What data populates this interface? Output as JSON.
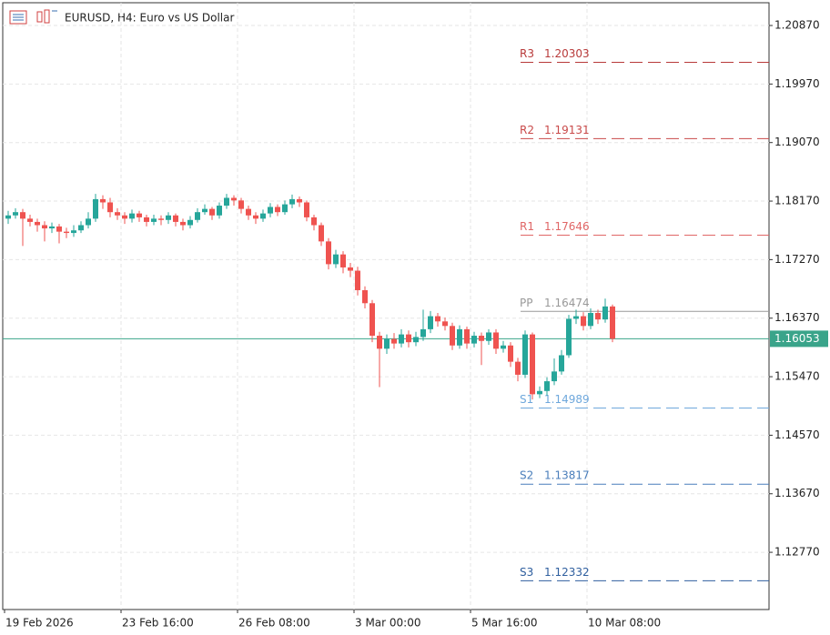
{
  "chart_data": {
    "type": "candlestick",
    "title": "EURUSD, H4:  Euro vs US Dollar",
    "categories": [
      "19 Feb 2026",
      null,
      null,
      null,
      null,
      null,
      null,
      null,
      null,
      null,
      null,
      null,
      null,
      null,
      null,
      null,
      "23 Feb 16:00",
      null,
      null,
      null,
      null,
      null,
      null,
      null,
      null,
      null,
      null,
      null,
      null,
      null,
      null,
      null,
      "26 Feb 08:00",
      null,
      null,
      null,
      null,
      null,
      null,
      null,
      null,
      null,
      null,
      null,
      null,
      null,
      null,
      null,
      "3 Mar 00:00",
      null,
      null,
      null,
      null,
      null,
      null,
      null,
      null,
      null,
      null,
      null,
      null,
      null,
      null,
      null,
      "5 Mar 16:00",
      null,
      null,
      null,
      null,
      null,
      null,
      null,
      null,
      null,
      null,
      null,
      null,
      null,
      null,
      null,
      "10 Mar 08:00",
      null,
      null,
      null
    ],
    "open": [
      1.179,
      1.1795,
      1.18,
      1.179,
      1.1785,
      1.178,
      1.1775,
      1.1778,
      1.177,
      1.1768,
      1.1772,
      1.178,
      1.179,
      1.182,
      1.1815,
      1.18,
      1.1795,
      1.179,
      1.1798,
      1.1792,
      1.1785,
      1.179,
      1.1788,
      1.1795,
      1.1785,
      1.178,
      1.1788,
      1.18,
      1.1805,
      1.1795,
      1.181,
      1.1822,
      1.1818,
      1.1805,
      1.1795,
      1.179,
      1.1798,
      1.1808,
      1.18,
      1.1812,
      1.182,
      1.1815,
      1.1792,
      1.178,
      1.1755,
      1.172,
      1.1735,
      1.1715,
      1.171,
      1.168,
      1.166,
      1.161,
      1.159,
      1.1605,
      1.1598,
      1.1612,
      1.16,
      1.1608,
      1.162,
      1.164,
      1.1632,
      1.1625,
      1.1595,
      1.162,
      1.1598,
      1.161,
      1.1602,
      1.1615,
      1.159,
      1.1595,
      1.157,
      1.155,
      1.1612,
      1.152,
      1.1525,
      1.154,
      1.1555,
      1.158,
      1.1636,
      1.164,
      1.1625,
      1.1645,
      1.1635,
      1.1655
    ],
    "high": [
      1.1802,
      1.1806,
      1.1805,
      1.1796,
      1.179,
      1.1786,
      1.1784,
      1.1782,
      1.1776,
      1.178,
      1.1786,
      1.18,
      1.1828,
      1.1826,
      1.1822,
      1.1806,
      1.18,
      1.1804,
      1.1802,
      1.1796,
      1.1796,
      1.1795,
      1.18,
      1.1798,
      1.179,
      1.1794,
      1.1806,
      1.1812,
      1.1808,
      1.1815,
      1.1828,
      1.1826,
      1.1822,
      1.181,
      1.18,
      1.1804,
      1.1814,
      1.1812,
      1.1818,
      1.1827,
      1.1824,
      1.1818,
      1.1796,
      1.1784,
      1.176,
      1.1742,
      1.174,
      1.1722,
      1.1716,
      1.1686,
      1.1665,
      1.1616,
      1.1612,
      1.1614,
      1.162,
      1.1618,
      1.1616,
      1.165,
      1.1648,
      1.1645,
      1.1638,
      1.163,
      1.1626,
      1.1624,
      1.1616,
      1.1615,
      1.162,
      1.162,
      1.1602,
      1.16,
      1.1576,
      1.1618,
      1.1615,
      1.1532,
      1.1546,
      1.1575,
      1.1588,
      1.1642,
      1.165,
      1.1646,
      1.1652,
      1.165,
      1.1667,
      1.1658
    ],
    "low": [
      1.1782,
      1.179,
      1.1748,
      1.1778,
      1.177,
      1.1755,
      1.1768,
      1.1752,
      1.176,
      1.1762,
      1.1768,
      1.1775,
      1.1785,
      1.1805,
      1.1792,
      1.1788,
      1.1782,
      1.1784,
      1.1785,
      1.1778,
      1.178,
      1.178,
      1.1782,
      1.1778,
      1.1772,
      1.1775,
      1.1784,
      1.1796,
      1.1788,
      1.179,
      1.1805,
      1.181,
      1.1798,
      1.1788,
      1.1782,
      1.1785,
      1.1792,
      1.1794,
      1.1796,
      1.1806,
      1.1808,
      1.1786,
      1.1772,
      1.1748,
      1.1712,
      1.1714,
      1.1706,
      1.17,
      1.1672,
      1.1652,
      1.16,
      1.1531,
      1.1582,
      1.159,
      1.1592,
      1.1592,
      1.1594,
      1.1602,
      1.1614,
      1.1624,
      1.1618,
      1.1588,
      1.159,
      1.159,
      1.1592,
      1.1565,
      1.1596,
      1.1582,
      1.1584,
      1.1562,
      1.154,
      1.1545,
      1.1512,
      1.1514,
      1.1518,
      1.1534,
      1.155,
      1.1576,
      1.1628,
      1.1618,
      1.162,
      1.1628,
      1.163,
      1.16
    ],
    "close": [
      1.1795,
      1.18,
      1.179,
      1.1785,
      1.178,
      1.1775,
      1.1778,
      1.177,
      1.1768,
      1.1772,
      1.178,
      1.179,
      1.182,
      1.1815,
      1.18,
      1.1795,
      1.179,
      1.1798,
      1.1792,
      1.1785,
      1.179,
      1.1788,
      1.1795,
      1.1785,
      1.178,
      1.1788,
      1.18,
      1.1805,
      1.1795,
      1.181,
      1.1822,
      1.1818,
      1.1805,
      1.1795,
      1.179,
      1.1798,
      1.1808,
      1.18,
      1.1812,
      1.182,
      1.1815,
      1.1792,
      1.178,
      1.1755,
      1.172,
      1.1735,
      1.1715,
      1.171,
      1.168,
      1.166,
      1.161,
      1.159,
      1.1605,
      1.1598,
      1.1612,
      1.16,
      1.1608,
      1.162,
      1.164,
      1.1632,
      1.1625,
      1.1595,
      1.162,
      1.1598,
      1.161,
      1.1602,
      1.1615,
      1.159,
      1.1595,
      1.157,
      1.155,
      1.1612,
      1.152,
      1.1525,
      1.154,
      1.1555,
      1.158,
      1.1636,
      1.164,
      1.1625,
      1.1645,
      1.1635,
      1.1655,
      1.16053
    ],
    "up_color": "#26a69a",
    "down_color": "#ef5350",
    "ylim": [
      1.1189,
      1.2122
    ],
    "yticks": [
      {
        "value": 1.1277,
        "label": "1.12770"
      },
      {
        "value": 1.1367,
        "label": "1.13670"
      },
      {
        "value": 1.1457,
        "label": "1.14570"
      },
      {
        "value": 1.1547,
        "label": "1.15470"
      },
      {
        "value": 1.1637,
        "label": "1.16370"
      },
      {
        "value": 1.1727,
        "label": "1.17270"
      },
      {
        "value": 1.1817,
        "label": "1.18170"
      },
      {
        "value": 1.1907,
        "label": "1.19070"
      },
      {
        "value": 1.1997,
        "label": "1.19970"
      },
      {
        "value": 1.2087,
        "label": "1.20870"
      }
    ],
    "grid": true,
    "current_price": 1.16053,
    "current_color": "#3aa48a",
    "levels": [
      {
        "name": "R3",
        "value": 1.20303,
        "color": "#b83a3a",
        "style": "dashed"
      },
      {
        "name": "R2",
        "value": 1.19131,
        "color": "#c94a4a",
        "style": "dashed"
      },
      {
        "name": "R1",
        "value": 1.17646,
        "color": "#e06666",
        "style": "dashed"
      },
      {
        "name": "PP",
        "value": 1.16474,
        "color": "#999999",
        "style": "solid"
      },
      {
        "name": "S1",
        "value": 1.14989,
        "color": "#6fa8dc",
        "style": "dashed"
      },
      {
        "name": "S2",
        "value": 1.13817,
        "color": "#4a7ebb",
        "style": "dashed"
      },
      {
        "name": "S3",
        "value": 1.12332,
        "color": "#2e5e9e",
        "style": "dashed"
      }
    ]
  }
}
